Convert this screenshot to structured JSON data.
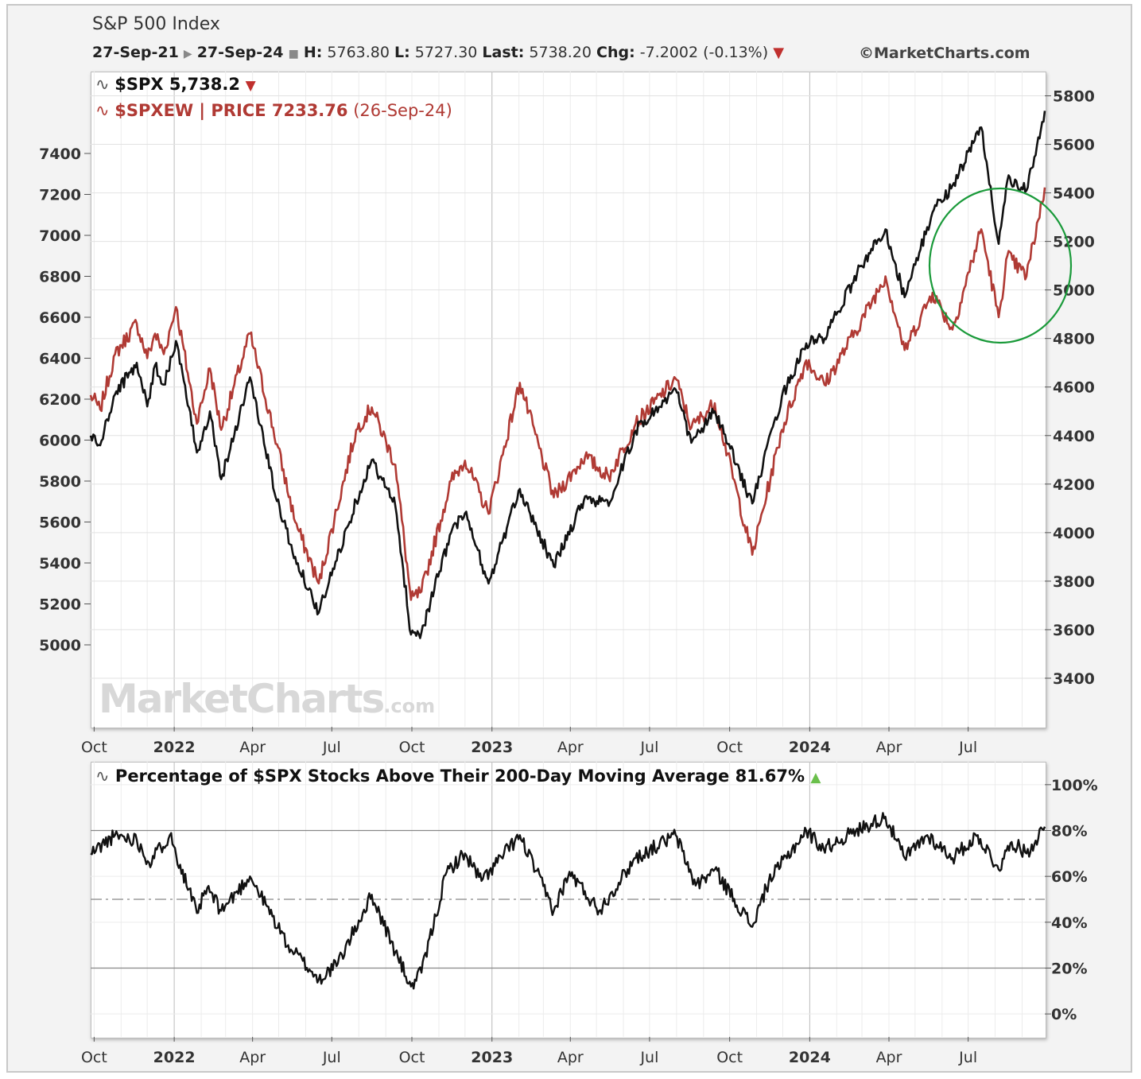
{
  "header": {
    "title": "S&P 500 Index",
    "date_from": "27-Sep-21",
    "date_to": "27-Sep-24",
    "high_label": "H:",
    "high": "5763.80",
    "low_label": "L:",
    "low": "5727.30",
    "last_label": "Last:",
    "last": "5738.20",
    "chg_label": "Chg:",
    "chg": "-7.2002 (-0.13%)",
    "copyright": "©MarketCharts.com"
  },
  "legend": {
    "spx": "$SPX 5,738.2",
    "spxew": "$SPXEW | PRICE 7233.76",
    "spxew_date": "(26-Sep-24)",
    "breadth": "Percentage of $SPX Stocks Above Their 200-Day Moving Average 81.67%"
  },
  "watermark": {
    "main": "MarketCharts",
    "suffix": ".com"
  },
  "colors": {
    "spx": "#111111",
    "spxew": "#b03a34",
    "annotation_circle": "#1a9a3a",
    "up": "#6abf4b",
    "down": "#c0302e"
  },
  "chart_data": [
    {
      "type": "line",
      "title": "S&P 500 Index",
      "x_ticks": [
        "Oct",
        "2022",
        "Apr",
        "Jul",
        "Oct",
        "2023",
        "Apr",
        "Jul",
        "Oct",
        "2024",
        "Apr",
        "Jul"
      ],
      "x_range": [
        "2021-09-27",
        "2024-09-27"
      ],
      "y_left": {
        "ticks": [
          5000,
          5200,
          5400,
          5600,
          5800,
          6000,
          6200,
          6400,
          6600,
          6800,
          7000,
          7200,
          7400
        ],
        "range": [
          4600,
          7800
        ],
        "series": "$SPXEW"
      },
      "y_right": {
        "ticks": [
          3400,
          3600,
          3800,
          4000,
          4200,
          4400,
          4600,
          4800,
          5000,
          5200,
          5400,
          5600,
          5800
        ],
        "range": [
          3200,
          5900
        ],
        "series": "$SPX"
      },
      "grid": true,
      "series": [
        {
          "name": "$SPX",
          "axis": "right",
          "x": [
            "2021-09-27",
            "2021-10-08",
            "2021-10-25",
            "2021-11-19",
            "2021-12-01",
            "2021-12-10",
            "2021-12-20",
            "2022-01-03",
            "2022-01-27",
            "2022-02-11",
            "2022-02-24",
            "2022-03-29",
            "2022-04-29",
            "2022-05-20",
            "2022-06-16",
            "2022-07-29",
            "2022-08-16",
            "2022-09-12",
            "2022-09-30",
            "2022-10-12",
            "2022-11-15",
            "2022-12-01",
            "2022-12-28",
            "2023-02-02",
            "2023-03-13",
            "2023-04-18",
            "2023-05-15",
            "2023-06-15",
            "2023-07-31",
            "2023-08-18",
            "2023-09-14",
            "2023-10-27",
            "2023-11-30",
            "2023-12-28",
            "2024-01-18",
            "2024-02-29",
            "2024-03-28",
            "2024-04-19",
            "2024-05-21",
            "2024-06-13",
            "2024-07-16",
            "2024-08-05",
            "2024-08-15",
            "2024-09-06",
            "2024-09-27"
          ],
          "values": [
            4400,
            4360,
            4570,
            4700,
            4520,
            4690,
            4610,
            4790,
            4330,
            4500,
            4220,
            4640,
            4130,
            3900,
            3670,
            4130,
            4300,
            4110,
            3580,
            3590,
            4000,
            4080,
            3790,
            4180,
            3860,
            4150,
            4110,
            4420,
            4590,
            4370,
            4500,
            4120,
            4560,
            4780,
            4800,
            5100,
            5250,
            4970,
            5320,
            5430,
            5670,
            5190,
            5450,
            5410,
            5738
          ]
        },
        {
          "name": "$SPXEW",
          "axis": "left",
          "x": [
            "2021-09-27",
            "2021-10-08",
            "2021-10-25",
            "2021-11-19",
            "2021-12-01",
            "2021-12-10",
            "2021-12-20",
            "2022-01-03",
            "2022-01-27",
            "2022-02-11",
            "2022-02-24",
            "2022-03-29",
            "2022-04-29",
            "2022-05-20",
            "2022-06-16",
            "2022-07-29",
            "2022-08-16",
            "2022-09-12",
            "2022-09-30",
            "2022-10-12",
            "2022-11-15",
            "2022-12-01",
            "2022-12-28",
            "2023-02-02",
            "2023-03-13",
            "2023-04-18",
            "2023-05-15",
            "2023-06-15",
            "2023-07-31",
            "2023-08-18",
            "2023-09-14",
            "2023-10-27",
            "2023-11-30",
            "2023-12-28",
            "2024-01-18",
            "2024-02-29",
            "2024-03-28",
            "2024-04-19",
            "2024-05-21",
            "2024-06-13",
            "2024-07-16",
            "2024-08-05",
            "2024-08-15",
            "2024-09-06",
            "2024-09-27"
          ],
          "values": [
            6220,
            6150,
            6420,
            6570,
            6400,
            6520,
            6420,
            6650,
            6080,
            6350,
            6050,
            6520,
            5980,
            5600,
            5300,
            6050,
            6160,
            5880,
            5220,
            5260,
            5800,
            5900,
            5640,
            6280,
            5720,
            5920,
            5820,
            6080,
            6300,
            6060,
            6180,
            5440,
            6050,
            6390,
            6270,
            6580,
            6800,
            6440,
            6720,
            6540,
            7030,
            6600,
            6900,
            6800,
            7234
          ]
        }
      ]
    },
    {
      "type": "line",
      "title": "Percentage of $SPX Stocks Above Their 200-Day Moving Average 81.67%",
      "x_ticks": [
        "Oct",
        "2022",
        "Apr",
        "Jul",
        "Oct",
        "2023",
        "Apr",
        "Jul",
        "Oct",
        "2024",
        "Apr",
        "Jul"
      ],
      "x_range": [
        "2021-09-27",
        "2024-09-27"
      ],
      "y": {
        "ticks": [
          "0%",
          "20%",
          "40%",
          "60%",
          "80%",
          "100%"
        ],
        "range": [
          -10,
          110
        ]
      },
      "reference_lines": [
        80,
        50,
        20
      ],
      "series": [
        {
          "name": "Percentage of $SPX Stocks Above Their 200-Day Moving Average",
          "x": [
            "2021-09-27",
            "2021-10-25",
            "2021-11-19",
            "2021-12-03",
            "2021-12-27",
            "2022-01-27",
            "2022-02-08",
            "2022-02-24",
            "2022-03-29",
            "2022-05-12",
            "2022-06-16",
            "2022-07-08",
            "2022-08-16",
            "2022-09-12",
            "2022-09-30",
            "2022-10-12",
            "2022-11-10",
            "2022-12-01",
            "2022-12-20",
            "2023-02-02",
            "2023-03-13",
            "2023-03-31",
            "2023-05-04",
            "2023-06-15",
            "2023-07-31",
            "2023-08-23",
            "2023-09-14",
            "2023-10-27",
            "2023-11-15",
            "2023-12-28",
            "2024-01-17",
            "2024-02-23",
            "2024-03-28",
            "2024-04-19",
            "2024-05-15",
            "2024-06-13",
            "2024-07-12",
            "2024-08-05",
            "2024-08-20",
            "2024-09-06",
            "2024-09-27"
          ],
          "values": [
            70,
            78,
            76,
            66,
            78,
            44,
            55,
            45,
            60,
            30,
            15,
            22,
            52,
            27,
            12,
            18,
            62,
            70,
            58,
            78,
            45,
            62,
            45,
            68,
            78,
            56,
            63,
            38,
            58,
            80,
            72,
            80,
            86,
            68,
            78,
            68,
            78,
            63,
            75,
            70,
            81.67
          ]
        }
      ]
    }
  ]
}
